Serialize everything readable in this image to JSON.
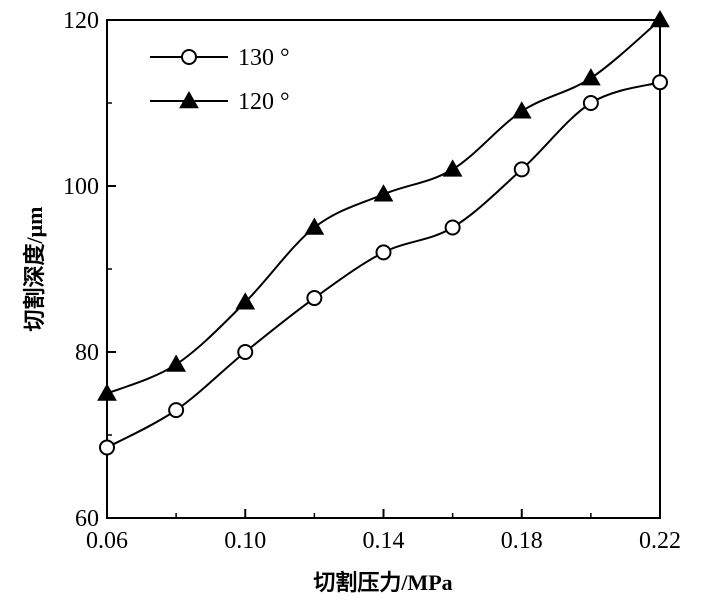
{
  "chart_data": {
    "type": "line",
    "xlabel": "切割压力/MPa",
    "ylabel": "切割深度/μm",
    "xlim": [
      0.06,
      0.22
    ],
    "ylim": [
      60,
      120
    ],
    "x_ticks": [
      "0.06",
      "0.10",
      "0.14",
      "0.18",
      "0.22"
    ],
    "y_ticks": [
      "60",
      "80",
      "100",
      "120"
    ],
    "grid": false,
    "legend_position": "top-left",
    "x": [
      0.06,
      0.08,
      0.1,
      0.12,
      0.14,
      0.16,
      0.18,
      0.2,
      0.22
    ],
    "series": [
      {
        "name": "130 °",
        "marker": "open-circle",
        "values": [
          68.5,
          73,
          80,
          86.5,
          92,
          95,
          102,
          110,
          112.5
        ]
      },
      {
        "name": "120 °",
        "marker": "filled-triangle",
        "values": [
          75,
          78.5,
          86,
          95,
          99,
          102,
          109,
          113,
          120
        ]
      }
    ]
  }
}
